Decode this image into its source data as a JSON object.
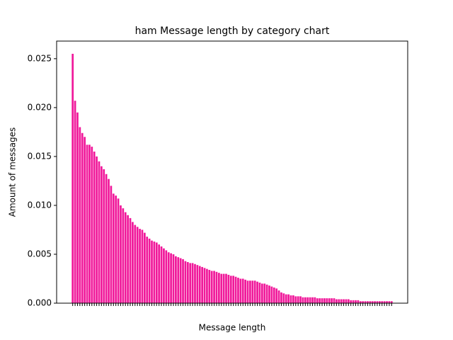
{
  "chart_data": {
    "type": "bar",
    "title": "ham Message length by category chart",
    "x_label": "Message length",
    "y_label": "Amount of messages",
    "categories": [
      null,
      null,
      null,
      null,
      null,
      null,
      null,
      null,
      null,
      null,
      null,
      null,
      null,
      null,
      null,
      null,
      null,
      null,
      null,
      null,
      null,
      null,
      null,
      null,
      null,
      null,
      null,
      null,
      null,
      null,
      null,
      null,
      null,
      null,
      null,
      null,
      null,
      null,
      null,
      null,
      null,
      null,
      null,
      null,
      null,
      null,
      null,
      null,
      null,
      null,
      null,
      null,
      null,
      null,
      null,
      null,
      null,
      null,
      null,
      null,
      null,
      null,
      null,
      null,
      null,
      null,
      null,
      null,
      null,
      null,
      null,
      null,
      null,
      null,
      null,
      null,
      null,
      null,
      null,
      null,
      null,
      null,
      null,
      null,
      null,
      null,
      null,
      null,
      null,
      null,
      null,
      null,
      null,
      null,
      null,
      null,
      null,
      null,
      null,
      null,
      null,
      null,
      null,
      null,
      null,
      null,
      null,
      null,
      null,
      null,
      null,
      null,
      null,
      null,
      null,
      null,
      null,
      null,
      null,
      null,
      null,
      null,
      null,
      null,
      null,
      null,
      null,
      null,
      null,
      null,
      null,
      null,
      null,
      null
    ],
    "values": [
      0.0255,
      0.0207,
      0.0195,
      0.018,
      0.0174,
      0.017,
      0.0162,
      0.0162,
      0.016,
      0.0155,
      0.015,
      0.0145,
      0.014,
      0.0137,
      0.0132,
      0.0127,
      0.012,
      0.0112,
      0.011,
      0.0107,
      0.01,
      0.0097,
      0.0093,
      0.009,
      0.0087,
      0.0083,
      0.008,
      0.0078,
      0.0076,
      0.0075,
      0.0072,
      0.0068,
      0.0066,
      0.0064,
      0.0063,
      0.0062,
      0.006,
      0.0058,
      0.0056,
      0.0054,
      0.0052,
      0.0051,
      0.005,
      0.0048,
      0.0047,
      0.0046,
      0.0045,
      0.0043,
      0.0042,
      0.0041,
      0.0041,
      0.004,
      0.0039,
      0.0038,
      0.0037,
      0.0036,
      0.0035,
      0.0034,
      0.0033,
      0.0033,
      0.0032,
      0.0031,
      0.003,
      0.003,
      0.003,
      0.0029,
      0.0028,
      0.0028,
      0.0027,
      0.0026,
      0.0025,
      0.0025,
      0.0024,
      0.0023,
      0.0023,
      0.0023,
      0.0023,
      0.0022,
      0.0021,
      0.002,
      0.002,
      0.0019,
      0.0018,
      0.0017,
      0.0016,
      0.0015,
      0.0013,
      0.0011,
      0.001,
      0.0009,
      0.0009,
      0.0008,
      0.0008,
      0.0007,
      0.0007,
      0.0007,
      0.0006,
      0.0006,
      0.0006,
      0.0006,
      0.0006,
      0.0006,
      0.0005,
      0.0005,
      0.0005,
      0.0005,
      0.0005,
      0.0005,
      0.0005,
      0.0005,
      0.0004,
      0.0004,
      0.0004,
      0.0004,
      0.0004,
      0.0004,
      0.0003,
      0.0003,
      0.0003,
      0.0003,
      0.0002,
      0.0002,
      0.0002,
      0.0002,
      0.0002,
      0.0002,
      0.0002,
      0.0002,
      0.0002,
      0.0002,
      0.0002,
      0.0002,
      0.0002,
      0.0002
    ],
    "color": "#f0189a",
    "ylim": [
      0,
      0.0268
    ],
    "yticks": [
      {
        "value": 0,
        "label": "0.000"
      },
      {
        "value": 0.005,
        "label": "0.005"
      },
      {
        "value": 0.01,
        "label": "0.010"
      },
      {
        "value": 0.015,
        "label": "0.015"
      },
      {
        "value": 0.02,
        "label": "0.020"
      },
      {
        "value": 0.025,
        "label": "0.025"
      }
    ]
  }
}
